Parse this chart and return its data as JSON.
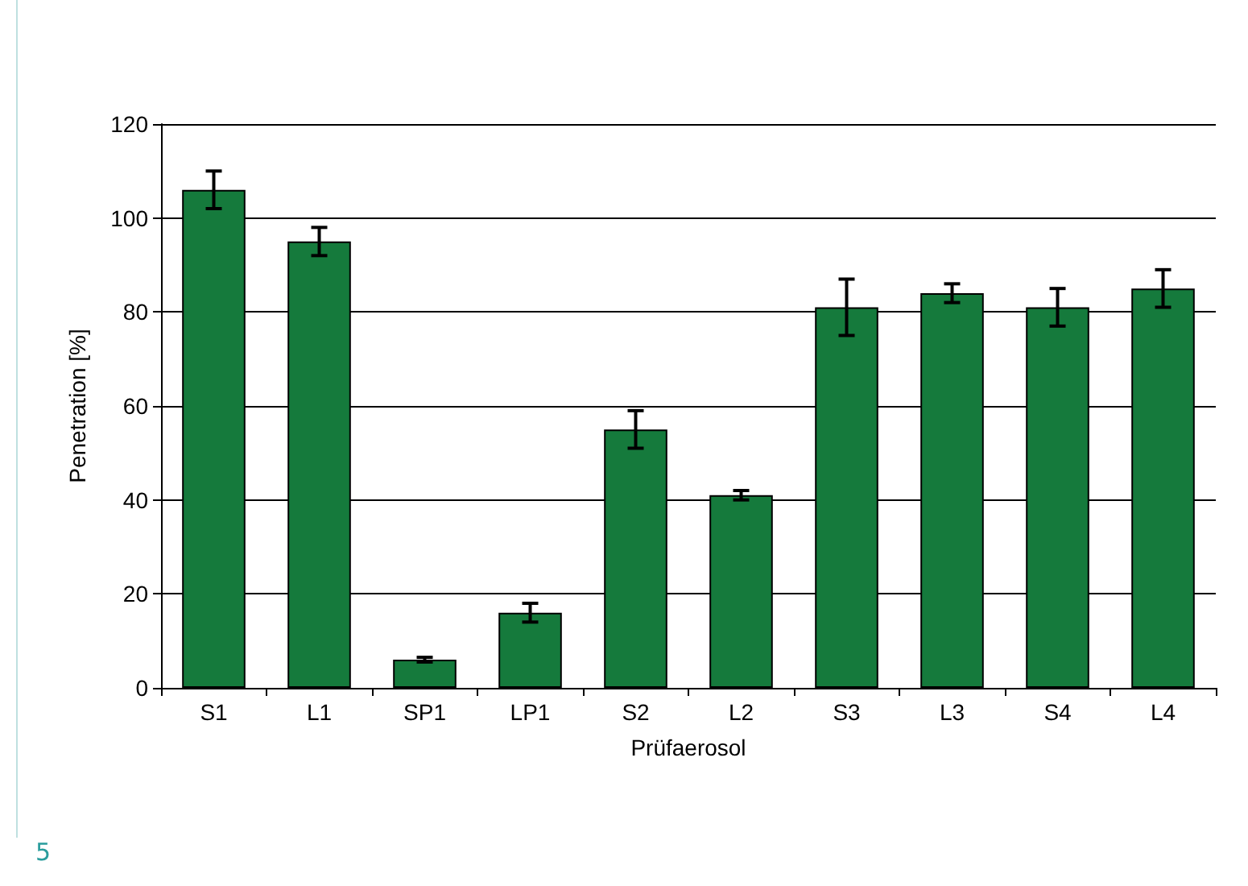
{
  "chart_data": {
    "type": "bar",
    "xlabel": "Prüfaerosol",
    "ylabel": "Penetration [%]",
    "categories": [
      "S1",
      "L1",
      "SP1",
      "LP1",
      "S2",
      "L2",
      "S3",
      "L3",
      "S4",
      "L4"
    ],
    "values": [
      106,
      95,
      6,
      16,
      55,
      41,
      81,
      84,
      81,
      85
    ],
    "errors": [
      4,
      3,
      0.5,
      2,
      4,
      1,
      6,
      2,
      4,
      4
    ],
    "color": "#157a3c",
    "ylim": [
      0,
      120
    ],
    "yticks": [
      0,
      20,
      40,
      60,
      80,
      100,
      120
    ],
    "grid": "y",
    "annotations": [
      "5"
    ]
  }
}
